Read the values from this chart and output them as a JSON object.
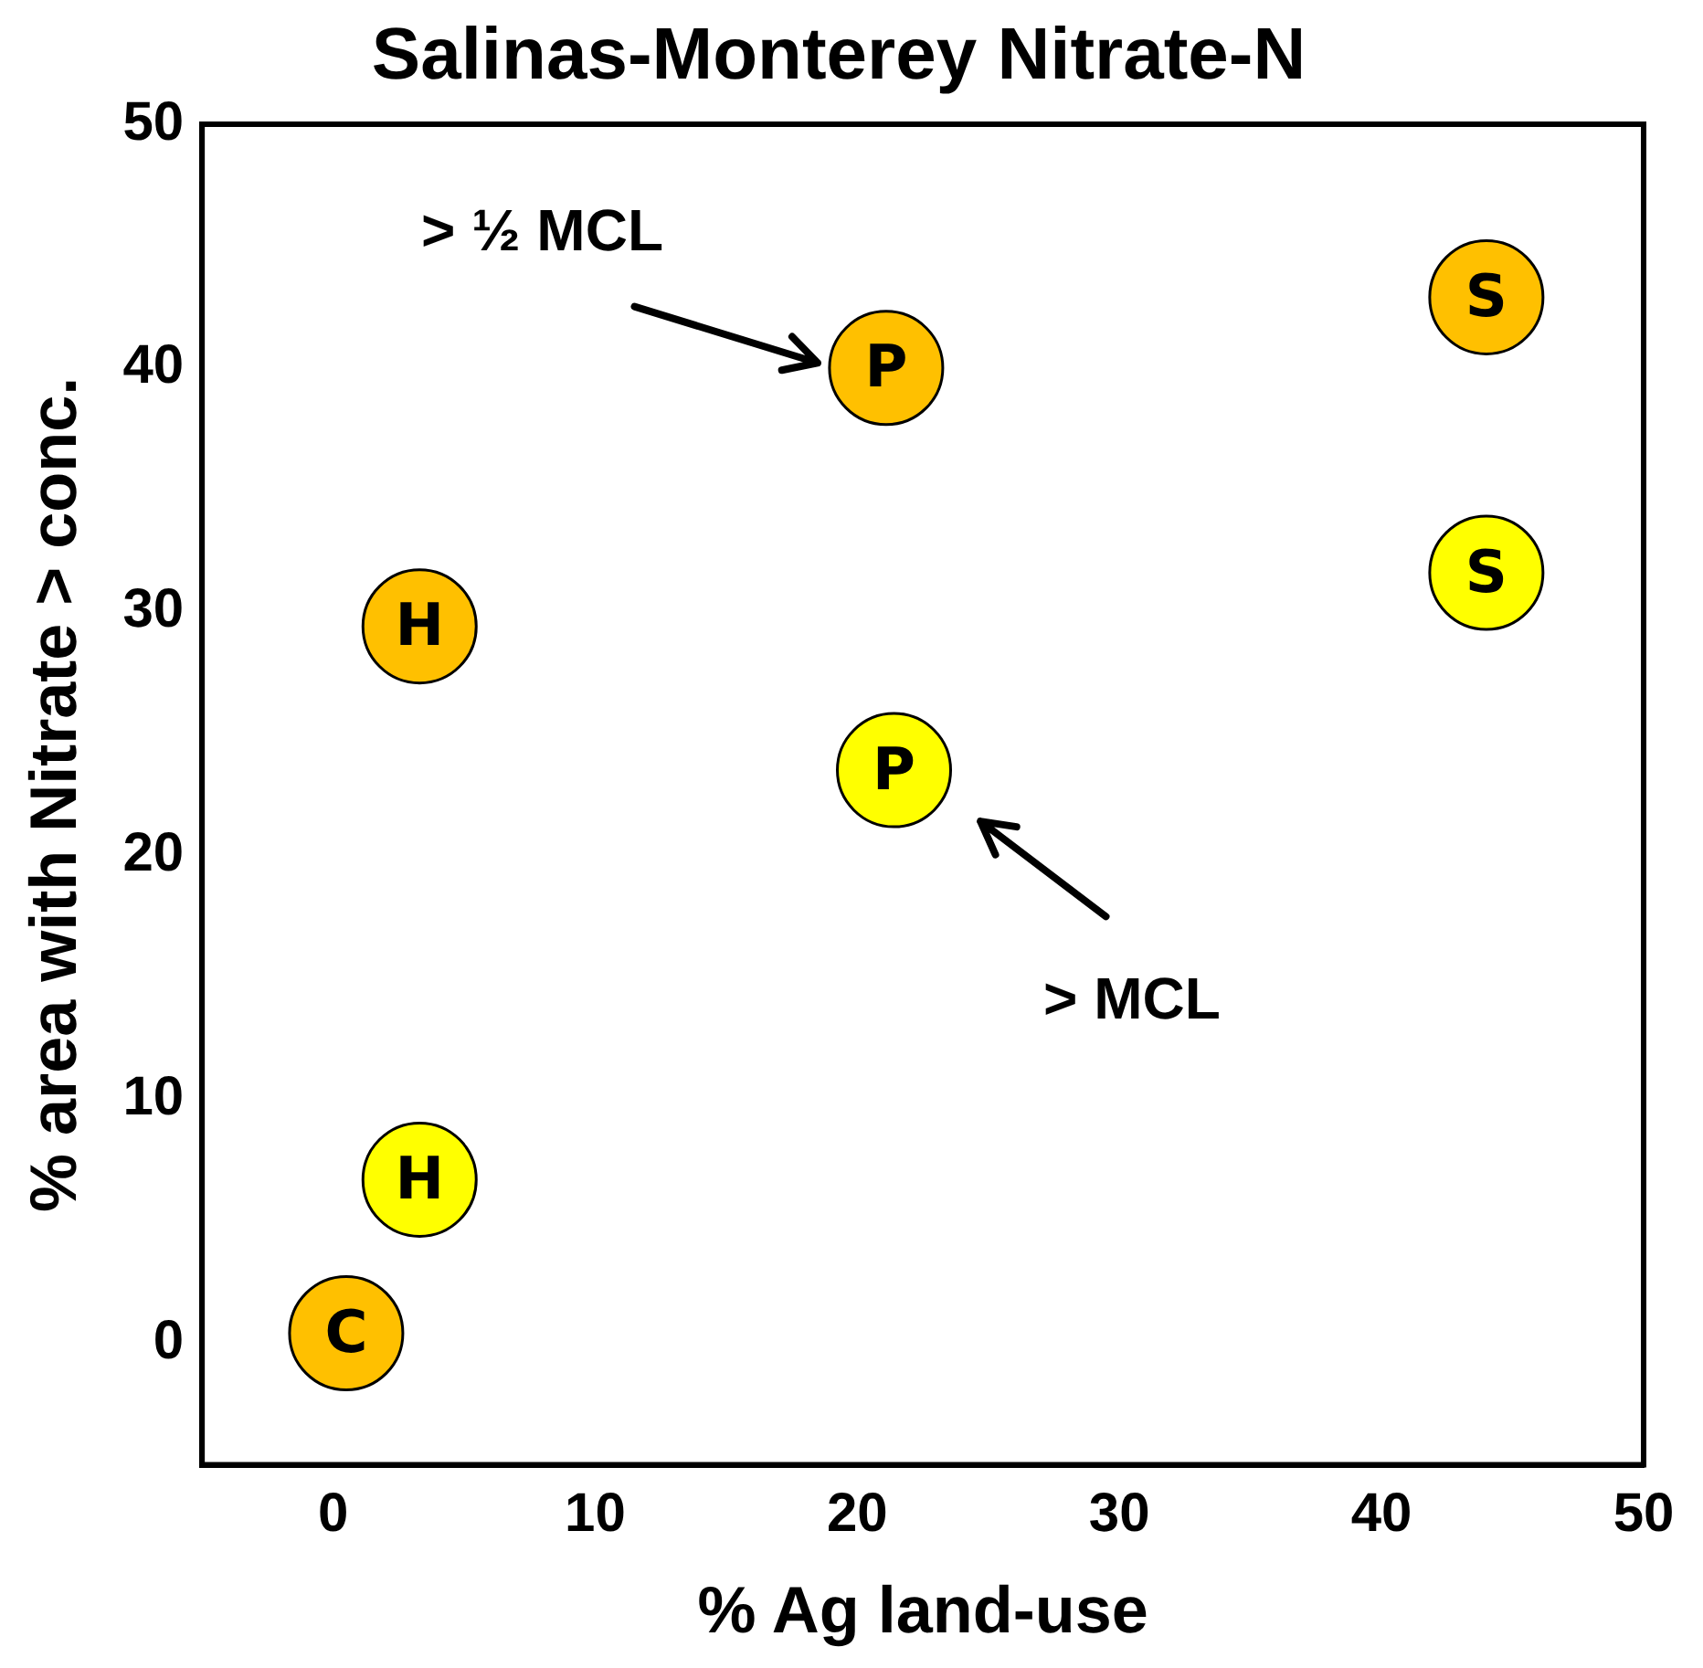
{
  "chart_data": {
    "type": "scatter",
    "title": "Salinas-Monterey Nitrate-N",
    "xlabel": "% Ag land-use",
    "ylabel": "% area with Nitrate > conc.",
    "series": [
      {
        "color": "#ffc000",
        "x": [
          0.5,
          3.3,
          21.1,
          44.0
        ],
        "values": [
          0.4,
          29.4,
          40.0,
          42.9
        ]
      },
      {
        "color": "#ffff00",
        "x": [
          3.3,
          21.4,
          44.0
        ],
        "values": [
          6.7,
          23.5,
          31.6
        ]
      }
    ],
    "annotations": [
      {
        "text": "C",
        "x": 0.5,
        "y": 0.4
      },
      {
        "text": "H",
        "x": 3.3,
        "y": 29.4
      },
      {
        "text": "P",
        "x": 21.1,
        "y": 40.0
      },
      {
        "text": "S",
        "x": 44.0,
        "y": 42.9
      },
      {
        "text": "H",
        "x": 3.3,
        "y": 6.7
      },
      {
        "text": "P",
        "x": 21.4,
        "y": 23.5
      },
      {
        "text": "S",
        "x": 44.0,
        "y": 31.6
      },
      "> ½ MCL",
      "> MCL"
    ],
    "xlim": [
      -5,
      50
    ],
    "xticks": [
      0,
      10,
      20,
      30,
      40,
      50
    ],
    "ylim": [
      -5,
      50
    ],
    "yticks": [
      0,
      10,
      20,
      30,
      40,
      50
    ],
    "marker": "circle",
    "grid": false,
    "legend": false
  }
}
